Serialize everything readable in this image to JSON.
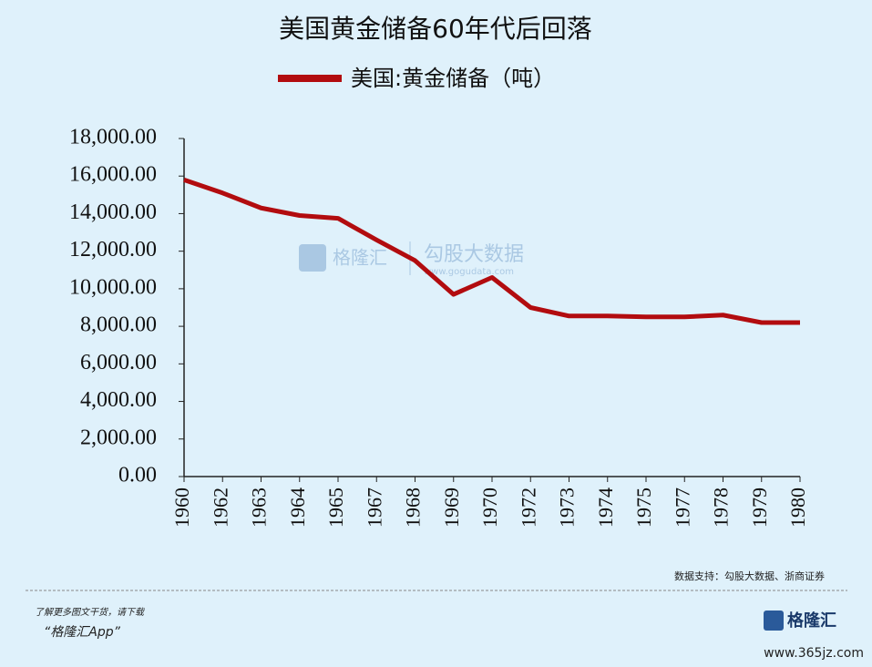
{
  "chart_data": {
    "type": "line",
    "title": "美国黄金储备60年代后回落",
    "categories": [
      "1960",
      "1962",
      "1963",
      "1964",
      "1965",
      "1967",
      "1968",
      "1969",
      "1970",
      "1972",
      "1973",
      "1974",
      "1975",
      "1977",
      "1978",
      "1979",
      "1980"
    ],
    "series": [
      {
        "name": "美国:黄金储备（吨）",
        "color": "#b20c0f",
        "values": [
          15800,
          15100,
          14300,
          13900,
          13750,
          12600,
          11500,
          9700,
          10600,
          9000,
          8550,
          8550,
          8500,
          8500,
          8600,
          8200,
          8200
        ]
      }
    ],
    "ylim": [
      0,
      18000
    ],
    "yticks": [
      {
        "value": 0,
        "label": "0.00"
      },
      {
        "value": 2000,
        "label": "2,000.00"
      },
      {
        "value": 4000,
        "label": "4,000.00"
      },
      {
        "value": 6000,
        "label": "6,000.00"
      },
      {
        "value": 8000,
        "label": "8,000.00"
      },
      {
        "value": 10000,
        "label": "10,000.00"
      },
      {
        "value": 12000,
        "label": "12,000.00"
      },
      {
        "value": 14000,
        "label": "14,000.00"
      },
      {
        "value": 16000,
        "label": "16,000.00"
      },
      {
        "value": 18000,
        "label": "18,000.00"
      }
    ],
    "grid": false,
    "legend": "top",
    "source": "数据支持：勾股大数据、浙商证券",
    "watermark": [
      "格隆汇",
      "勾股大数据",
      "www.gogudata.com"
    ]
  },
  "footer": {
    "note": "了解更多图文干货，请下载",
    "app": "“格隆汇App”",
    "logo": "格隆汇",
    "site": "www.365jz.com"
  }
}
